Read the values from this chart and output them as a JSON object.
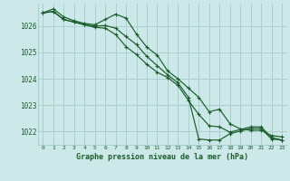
{
  "title": "Graphe pression niveau de la mer (hPa)",
  "background_color": "#cce8e8",
  "grid_color": "#aacfcf",
  "line_color": "#1a5c2a",
  "x_labels": [
    "0",
    "1",
    "2",
    "3",
    "4",
    "5",
    "6",
    "7",
    "8",
    "9",
    "10",
    "11",
    "12",
    "13",
    "14",
    "15",
    "16",
    "17",
    "18",
    "19",
    "20",
    "21",
    "22",
    "23"
  ],
  "ylim": [
    1021.5,
    1026.85
  ],
  "yticks": [
    1022,
    1023,
    1024,
    1025,
    1026
  ],
  "series1": [
    1026.5,
    1026.65,
    1026.35,
    1026.2,
    1026.1,
    1026.05,
    1026.25,
    1026.45,
    1026.3,
    1025.7,
    1025.2,
    1024.9,
    1024.3,
    1024.0,
    1023.65,
    1023.3,
    1022.75,
    1022.85,
    1022.3,
    1022.1,
    1022.05,
    1022.05,
    1021.85,
    1021.8
  ],
  "series2": [
    1026.5,
    1026.55,
    1026.25,
    1026.15,
    1026.05,
    1026.0,
    1026.02,
    1025.92,
    1025.6,
    1025.3,
    1024.85,
    1024.5,
    1024.15,
    1023.85,
    1023.3,
    1021.72,
    1021.68,
    1021.68,
    1021.92,
    1022.02,
    1022.12,
    1022.12,
    1021.72,
    1021.68
  ],
  "series3": [
    1026.5,
    1026.55,
    1026.25,
    1026.15,
    1026.05,
    1025.95,
    1025.92,
    1025.68,
    1025.22,
    1024.92,
    1024.55,
    1024.25,
    1024.05,
    1023.75,
    1023.18,
    1022.65,
    1022.22,
    1022.18,
    1021.98,
    1022.08,
    1022.18,
    1022.18,
    1021.78,
    1021.68
  ]
}
